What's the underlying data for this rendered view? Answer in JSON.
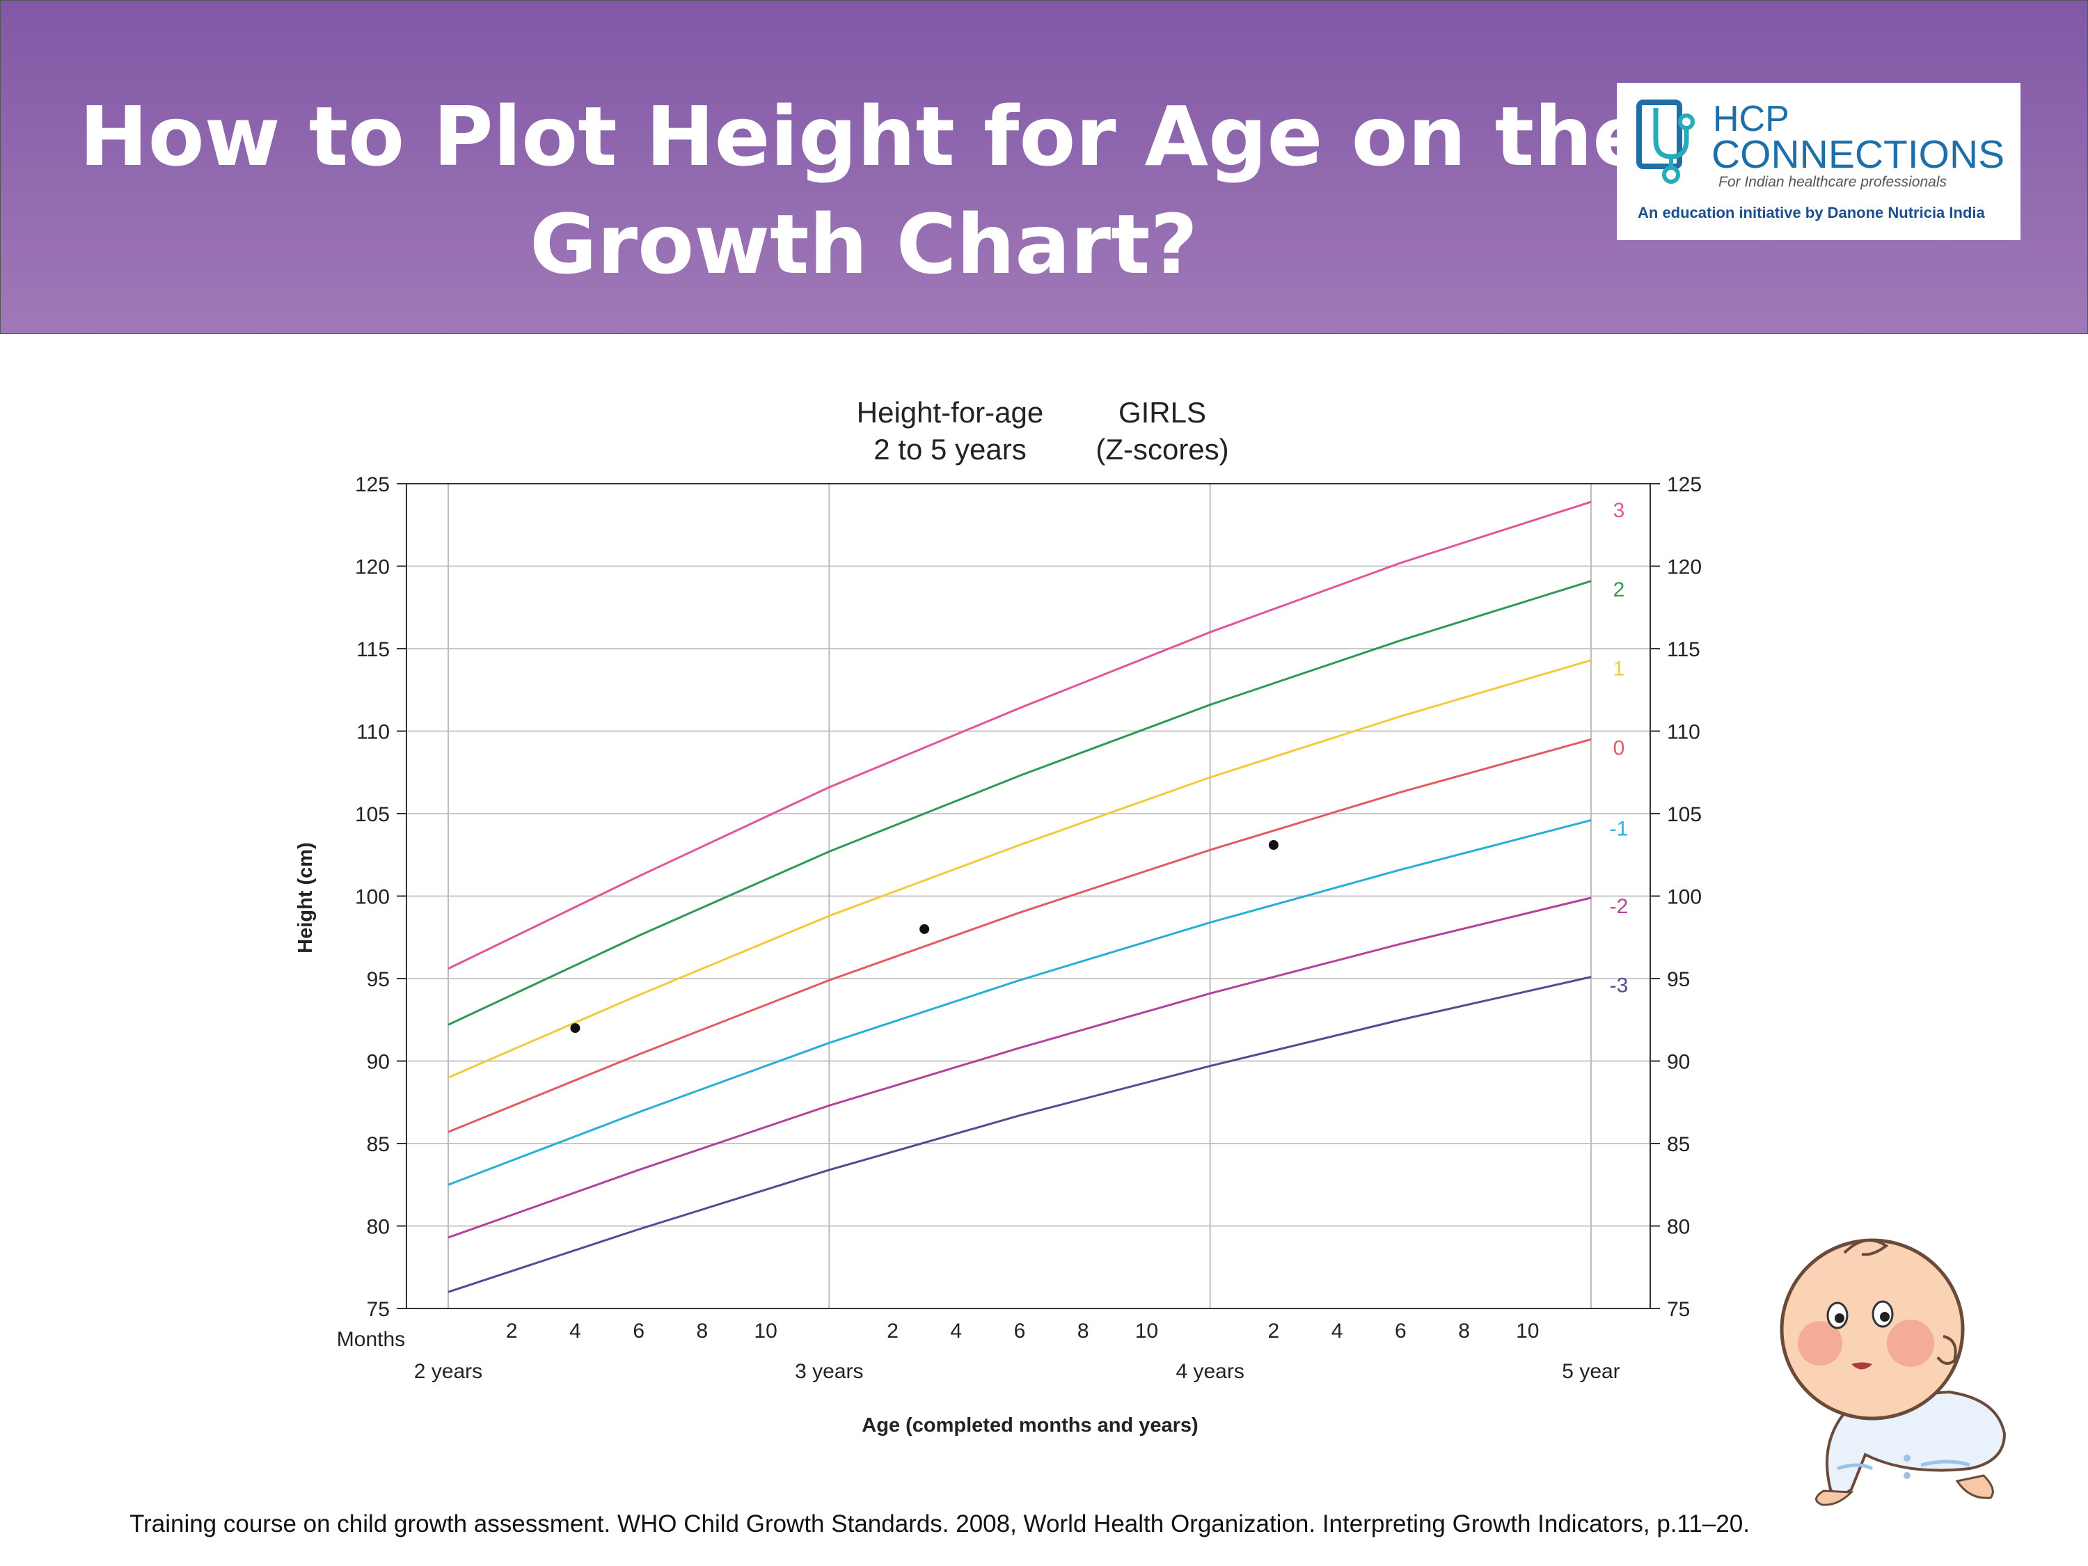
{
  "slide": {
    "title_line1": "How to Plot Height for Age on the",
    "title_line2": "Growth Chart?",
    "citation": "Training course on child growth assessment. WHO Child Growth Standards. 2008, World Health Organization. Interpreting Growth Indicators, p.11–20.",
    "colors": {
      "banner_top": "#8158a5",
      "banner_bottom": "#a079b8"
    }
  },
  "logo": {
    "line1": "HCP",
    "line2": "CONNECTIONS",
    "tagline": "For Indian healthcare professionals",
    "initiative": "An education initiative by Danone Nutricia India",
    "colors": {
      "brand": "#1e6fa8",
      "accent": "#27aab9",
      "initiative": "#1c4f8c"
    }
  },
  "illustration": {
    "icon": "crawling-baby-icon"
  },
  "chart_data": {
    "type": "line",
    "title_left_line1": "Height-for-age",
    "title_left_line2": "2 to 5 years",
    "title_right_line1": "GIRLS",
    "title_right_line2": "(Z-scores)",
    "ylabel": "Height (cm)",
    "xlabel": "Age (completed months and years)",
    "ylim": [
      75,
      125
    ],
    "yticks": [
      75,
      80,
      85,
      90,
      95,
      100,
      105,
      110,
      115,
      120,
      125
    ],
    "xlim": [
      24,
      60
    ],
    "months_label": "Months",
    "month_ticks": [
      "2",
      "4",
      "6",
      "8",
      "10"
    ],
    "year_labels": [
      "2 years",
      "3 years",
      "4 years",
      "5 year"
    ],
    "grid": true,
    "series": [
      {
        "name": "3",
        "color": "#e0569a",
        "x": [
          24,
          30,
          36,
          42,
          48,
          54,
          60
        ],
        "values": [
          95.6,
          101.2,
          106.6,
          111.4,
          116.0,
          120.2,
          123.9
        ]
      },
      {
        "name": "2",
        "color": "#2f9a55",
        "x": [
          24,
          30,
          36,
          42,
          48,
          54,
          60
        ],
        "values": [
          92.2,
          97.6,
          102.7,
          107.3,
          111.6,
          115.5,
          119.1
        ]
      },
      {
        "name": "1",
        "color": "#f2cb3c",
        "x": [
          24,
          30,
          36,
          42,
          48,
          54,
          60
        ],
        "values": [
          89.0,
          94.0,
          98.8,
          103.1,
          107.2,
          110.9,
          114.3
        ]
      },
      {
        "name": "0",
        "color": "#e35b62",
        "x": [
          24,
          30,
          36,
          42,
          48,
          54,
          60
        ],
        "values": [
          85.7,
          90.4,
          94.9,
          99.0,
          102.8,
          106.3,
          109.5
        ]
      },
      {
        "name": "-1",
        "color": "#29afd6",
        "x": [
          24,
          30,
          36,
          42,
          48,
          54,
          60
        ],
        "values": [
          82.5,
          86.9,
          91.1,
          94.9,
          98.4,
          101.6,
          104.6
        ]
      },
      {
        "name": "-2",
        "color": "#b4429b",
        "x": [
          24,
          30,
          36,
          42,
          48,
          54,
          60
        ],
        "values": [
          79.3,
          83.4,
          87.3,
          90.8,
          94.1,
          97.1,
          99.9
        ]
      },
      {
        "name": "-3",
        "color": "#5a4890",
        "x": [
          24,
          30,
          36,
          42,
          48,
          54,
          60
        ],
        "values": [
          76.0,
          79.8,
          83.4,
          86.7,
          89.7,
          92.5,
          95.1
        ]
      }
    ],
    "points": [
      {
        "x": 28,
        "y": 92.0
      },
      {
        "x": 39,
        "y": 98.0
      },
      {
        "x": 50,
        "y": 103.1
      }
    ]
  }
}
